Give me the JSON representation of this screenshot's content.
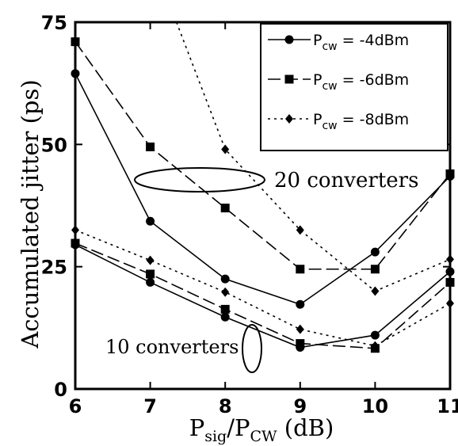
{
  "chart_data": {
    "type": "line",
    "xlabel": {
      "main": "P",
      "sub1": "sig",
      "mid": "/P",
      "sub2": "CW",
      "unit": " (dB)"
    },
    "ylabel": "Accumulated jitter (ps)",
    "xlim": [
      6,
      11
    ],
    "ylim": [
      0,
      75
    ],
    "xticks": [
      "6",
      "7",
      "8",
      "9",
      "10",
      "11"
    ],
    "yticks": [
      "0",
      "25",
      "50",
      "75"
    ],
    "grid": false,
    "legend_position": "top-right",
    "series": [
      {
        "name": "-4dBm",
        "group": "20 converters",
        "marker": "circle",
        "dash": "solid",
        "x": [
          6,
          7,
          8,
          9,
          10,
          11
        ],
        "y": [
          64.5,
          34.3,
          22.5,
          17.3,
          28,
          43.5
        ]
      },
      {
        "name": "-6dBm",
        "group": "20 converters",
        "marker": "square",
        "dash": "longdash",
        "x": [
          6,
          7,
          8,
          9,
          10,
          11
        ],
        "y": [
          71,
          49.5,
          37,
          24.5,
          24.5,
          44
        ]
      },
      {
        "name": "-8dBm",
        "group": "20 converters",
        "marker": "diamond",
        "dash": "dotted",
        "x": [
          7.35,
          8,
          9,
          10,
          11
        ],
        "y": [
          75,
          49,
          32.5,
          20,
          26.5
        ]
      },
      {
        "name": "-4dBm",
        "group": "10 converters",
        "marker": "circle",
        "dash": "solid",
        "x": [
          6,
          7,
          8,
          9,
          10,
          11
        ],
        "y": [
          29.5,
          21.8,
          14.7,
          8.5,
          11,
          24
        ]
      },
      {
        "name": "-6dBm",
        "group": "10 converters",
        "marker": "square",
        "dash": "longdash",
        "x": [
          6,
          7,
          8,
          9,
          10,
          11
        ],
        "y": [
          29.8,
          23.5,
          16.3,
          9.3,
          8.3,
          21.8
        ]
      },
      {
        "name": "-8dBm",
        "group": "10 converters",
        "marker": "diamond",
        "dash": "dotted",
        "x": [
          6,
          7,
          8,
          9,
          10,
          11
        ],
        "y": [
          32.5,
          26.3,
          19.8,
          12.2,
          8.8,
          17.5
        ]
      }
    ],
    "legend": [
      {
        "prefix": "P",
        "sub": "cw",
        "value": " = -4dBm",
        "marker": "circle",
        "dash": "solid"
      },
      {
        "prefix": "P",
        "sub": "cw",
        "value": " = -6dBm",
        "marker": "square",
        "dash": "longdash"
      },
      {
        "prefix": "P",
        "sub": "cw",
        "value": " = -8dBm",
        "marker": "diamond",
        "dash": "dotted"
      }
    ],
    "annotations": {
      "group_20": "20 converters",
      "group_10": "10 converters"
    }
  }
}
